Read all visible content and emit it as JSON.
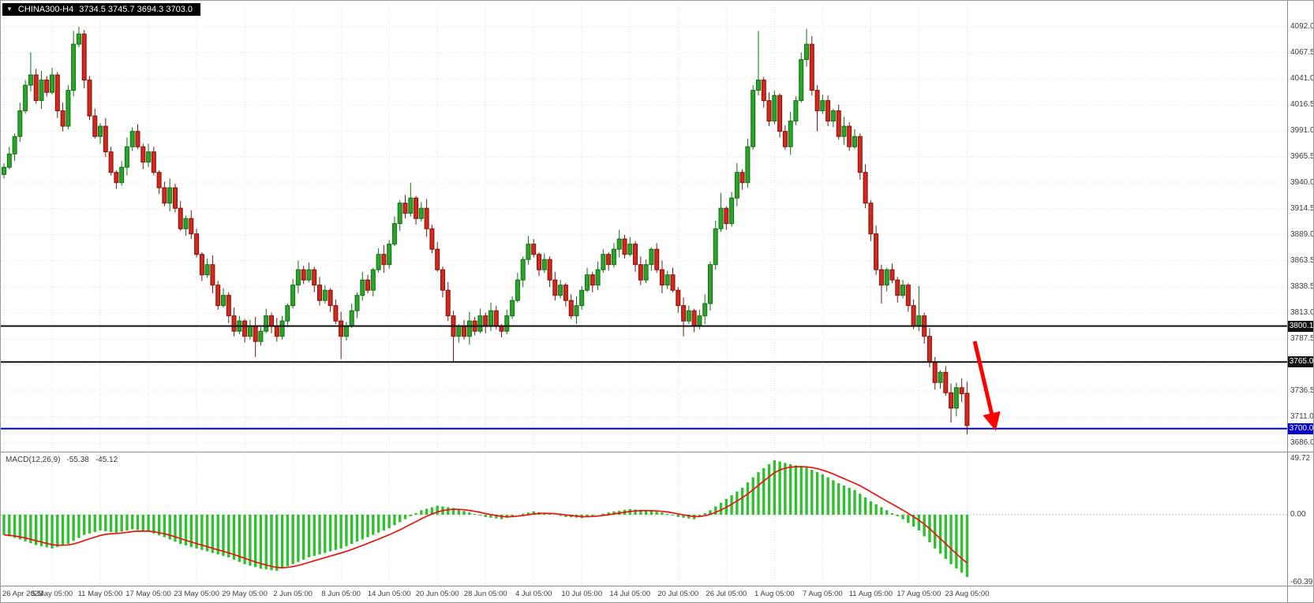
{
  "header": {
    "symbol": "CHINA300-H4",
    "ohlc": "3734.5 3745.7 3694.3 3703.0"
  },
  "price_axis": {
    "labels": [
      "4092.0",
      "4067.5",
      "4041.0",
      "4016.5",
      "3991.0",
      "3965.5",
      "3940.0",
      "3914.5",
      "3889.0",
      "3863.5",
      "3838.5",
      "3813.0",
      "3787.5",
      "3762.0",
      "3736.5",
      "3711.0",
      "3686.0"
    ]
  },
  "hlines": [
    {
      "label": "3800.1",
      "price": 3800.1,
      "color": "#111111"
    },
    {
      "label": "3765.0",
      "price": 3765.0,
      "color": "#111111"
    },
    {
      "label": "3700.0",
      "price": 3700.0,
      "color": "#0000cc"
    }
  ],
  "time_axis": {
    "labels": [
      "26 Apr 2023",
      "5 May 05:00",
      "11 May 05:00",
      "17 May 05:00",
      "23 May 05:00",
      "29 May 05:00",
      "2 Jun 05:00",
      "8 Jun 05:00",
      "14 Jun 05:00",
      "20 Jun 05:00",
      "28 Jun 05:00",
      "4 Jul 05:00",
      "10 Jul 05:00",
      "14 Jul 05:00",
      "20 Jul 05:00",
      "26 Jul 05:00",
      "1 Aug 05:00",
      "7 Aug 05:00",
      "11 Aug 05:00",
      "17 Aug 05:00",
      "23 Aug 05:00"
    ]
  },
  "indicator": {
    "name": "MACD(12,26,9)",
    "main": "-55.38",
    "signal": "-45.12",
    "scale": [
      "49.72",
      "0.00",
      "-60.39"
    ]
  },
  "colors": {
    "bull_fill": "#2aa52a",
    "bull_stroke": "#0f6e12",
    "bear_fill": "#d6271c",
    "bear_stroke": "#7e120b",
    "histogram": "#2fbf2f",
    "signal_line": "#e8150d",
    "arrow": "#ff0000",
    "blue_line": "#0000cc",
    "black_line": "#111111"
  },
  "chart_data": {
    "type": "candlestick+macd",
    "symbol": "CHINA300",
    "timeframe": "H4",
    "price_axis_top": 4092.0,
    "price_axis_bottom": 3686.0,
    "x_labels_every": 9,
    "candles": [
      [
        3948,
        3959,
        3944,
        3955
      ],
      [
        3955,
        3975,
        3953,
        3968
      ],
      [
        3968,
        3988,
        3961,
        3985
      ],
      [
        3985,
        4018,
        3980,
        4010
      ],
      [
        4010,
        4040,
        4007,
        4035
      ],
      [
        4035,
        4067,
        4029,
        4045
      ],
      [
        4045,
        4051,
        4017,
        4020
      ],
      [
        4020,
        4049,
        4012,
        4040
      ],
      [
        4040,
        4044,
        4024,
        4028
      ],
      [
        4028,
        4052,
        4026,
        4045
      ],
      [
        4045,
        4048,
        4003,
        4010
      ],
      [
        4010,
        4018,
        3990,
        3995
      ],
      [
        3995,
        4035,
        3992,
        4030
      ],
      [
        4030,
        4088,
        4024,
        4075
      ],
      [
        4075,
        4092,
        4072,
        4085
      ],
      [
        4085,
        4089,
        4032,
        4040
      ],
      [
        4040,
        4044,
        4001,
        4005
      ],
      [
        4005,
        4012,
        3983,
        3985
      ],
      [
        3985,
        3998,
        3978,
        3995
      ],
      [
        3995,
        4003,
        3965,
        3970
      ],
      [
        3970,
        3975,
        3947,
        3950
      ],
      [
        3950,
        3952,
        3934,
        3940
      ],
      [
        3940,
        3961,
        3937,
        3955
      ],
      [
        3955,
        3984,
        3947,
        3975
      ],
      [
        3975,
        3994,
        3971,
        3990
      ],
      [
        3990,
        3997,
        3973,
        3975
      ],
      [
        3975,
        3978,
        3953,
        3960
      ],
      [
        3960,
        3978,
        3955,
        3970
      ],
      [
        3970,
        3975,
        3947,
        3950
      ],
      [
        3950,
        3952,
        3929,
        3935
      ],
      [
        3935,
        3941,
        3917,
        3920
      ],
      [
        3920,
        3944,
        3912,
        3935
      ],
      [
        3935,
        3939,
        3911,
        3915
      ],
      [
        3915,
        3922,
        3893,
        3895
      ],
      [
        3895,
        3908,
        3888,
        3905
      ],
      [
        3905,
        3913,
        3885,
        3890
      ],
      [
        3890,
        3895,
        3867,
        3870
      ],
      [
        3870,
        3872,
        3844,
        3850
      ],
      [
        3850,
        3866,
        3847,
        3860
      ],
      [
        3860,
        3869,
        3832,
        3840
      ],
      [
        3840,
        3844,
        3816,
        3820
      ],
      [
        3820,
        3837,
        3818,
        3830
      ],
      [
        3830,
        3833,
        3803,
        3810
      ],
      [
        3810,
        3818,
        3790,
        3795
      ],
      [
        3795,
        3810,
        3792,
        3805
      ],
      [
        3805,
        3807,
        3784,
        3790
      ],
      [
        3790,
        3806,
        3787,
        3800
      ],
      [
        3800,
        3809,
        3770,
        3785
      ],
      [
        3785,
        3799,
        3781,
        3795
      ],
      [
        3795,
        3817,
        3793,
        3810
      ],
      [
        3810,
        3813,
        3793,
        3800
      ],
      [
        3800,
        3808,
        3785,
        3790
      ],
      [
        3790,
        3810,
        3787,
        3805
      ],
      [
        3805,
        3822,
        3799,
        3820
      ],
      [
        3820,
        3846,
        3817,
        3840
      ],
      [
        3840,
        3864,
        3832,
        3855
      ],
      [
        3855,
        3859,
        3841,
        3845
      ],
      [
        3845,
        3862,
        3843,
        3855
      ],
      [
        3855,
        3858,
        3833,
        3840
      ],
      [
        3840,
        3848,
        3820,
        3825
      ],
      [
        3825,
        3840,
        3822,
        3835
      ],
      [
        3835,
        3837,
        3814,
        3820
      ],
      [
        3820,
        3826,
        3802,
        3805
      ],
      [
        3805,
        3814,
        3768,
        3790
      ],
      [
        3790,
        3804,
        3786,
        3800
      ],
      [
        3800,
        3822,
        3798,
        3815
      ],
      [
        3815,
        3833,
        3808,
        3830
      ],
      [
        3830,
        3853,
        3825,
        3845
      ],
      [
        3845,
        3850,
        3832,
        3835
      ],
      [
        3835,
        3857,
        3829,
        3855
      ],
      [
        3855,
        3876,
        3852,
        3870
      ],
      [
        3870,
        3879,
        3852,
        3860
      ],
      [
        3860,
        3884,
        3856,
        3880
      ],
      [
        3880,
        3907,
        3878,
        3900
      ],
      [
        3900,
        3923,
        3893,
        3920
      ],
      [
        3920,
        3928,
        3905,
        3910
      ],
      [
        3910,
        3940,
        3907,
        3925
      ],
      [
        3925,
        3927,
        3899,
        3905
      ],
      [
        3905,
        3921,
        3902,
        3915
      ],
      [
        3915,
        3924,
        3887,
        3895
      ],
      [
        3895,
        3899,
        3871,
        3875
      ],
      [
        3875,
        3882,
        3853,
        3855
      ],
      [
        3855,
        3858,
        3828,
        3835
      ],
      [
        3835,
        3843,
        3805,
        3810
      ],
      [
        3810,
        3815,
        3765,
        3790
      ],
      [
        3790,
        3802,
        3784,
        3800
      ],
      [
        3800,
        3806,
        3787,
        3790
      ],
      [
        3790,
        3814,
        3782,
        3805
      ],
      [
        3805,
        3809,
        3791,
        3795
      ],
      [
        3795,
        3817,
        3793,
        3810
      ],
      [
        3810,
        3813,
        3793,
        3800
      ],
      [
        3800,
        3823,
        3795,
        3815
      ],
      [
        3815,
        3820,
        3797,
        3800
      ],
      [
        3800,
        3802,
        3789,
        3795
      ],
      [
        3795,
        3816,
        3792,
        3810
      ],
      [
        3810,
        3829,
        3807,
        3825
      ],
      [
        3825,
        3852,
        3823,
        3845
      ],
      [
        3845,
        3868,
        3838,
        3865
      ],
      [
        3865,
        3888,
        3860,
        3880
      ],
      [
        3880,
        3885,
        3867,
        3870
      ],
      [
        3870,
        3872,
        3849,
        3855
      ],
      [
        3855,
        3871,
        3852,
        3865
      ],
      [
        3865,
        3868,
        3838,
        3845
      ],
      [
        3845,
        3853,
        3825,
        3830
      ],
      [
        3830,
        3845,
        3827,
        3840
      ],
      [
        3840,
        3842,
        3819,
        3825
      ],
      [
        3825,
        3831,
        3807,
        3810
      ],
      [
        3810,
        3829,
        3802,
        3820
      ],
      [
        3820,
        3839,
        3816,
        3835
      ],
      [
        3835,
        3857,
        3833,
        3850
      ],
      [
        3850,
        3853,
        3833,
        3840
      ],
      [
        3840,
        3863,
        3835,
        3855
      ],
      [
        3855,
        3875,
        3852,
        3870
      ],
      [
        3870,
        3872,
        3854,
        3860
      ],
      [
        3860,
        3881,
        3857,
        3875
      ],
      [
        3875,
        3894,
        3867,
        3885
      ],
      [
        3885,
        3889,
        3866,
        3870
      ],
      [
        3870,
        3887,
        3868,
        3880
      ],
      [
        3880,
        3883,
        3853,
        3860
      ],
      [
        3860,
        3868,
        3840,
        3845
      ],
      [
        3845,
        3865,
        3842,
        3860
      ],
      [
        3860,
        3877,
        3854,
        3875
      ],
      [
        3875,
        3881,
        3852,
        3855
      ],
      [
        3855,
        3864,
        3832,
        3840
      ],
      [
        3840,
        3854,
        3836,
        3850
      ],
      [
        3850,
        3857,
        3833,
        3835
      ],
      [
        3835,
        3838,
        3813,
        3820
      ],
      [
        3820,
        3828,
        3790,
        3805
      ],
      [
        3805,
        3820,
        3802,
        3815
      ],
      [
        3815,
        3817,
        3794,
        3800
      ],
      [
        3800,
        3816,
        3797,
        3810
      ],
      [
        3810,
        3831,
        3802,
        3822
      ],
      [
        3822,
        3863,
        3815,
        3860
      ],
      [
        3860,
        3903,
        3855,
        3895
      ],
      [
        3895,
        3930,
        3892,
        3915
      ],
      [
        3915,
        3917,
        3894,
        3900
      ],
      [
        3900,
        3931,
        3897,
        3925
      ],
      [
        3925,
        3959,
        3917,
        3950
      ],
      [
        3950,
        3953,
        3933,
        3940
      ],
      [
        3940,
        3983,
        3935,
        3975
      ],
      [
        3975,
        4035,
        3972,
        4030
      ],
      [
        4030,
        4088,
        4025,
        4040
      ],
      [
        4040,
        4043,
        4013,
        4020
      ],
      [
        4020,
        4028,
        3995,
        4000
      ],
      [
        4000,
        4030,
        3997,
        4025
      ],
      [
        4025,
        4027,
        3984,
        3990
      ],
      [
        3990,
        3996,
        3972,
        3975
      ],
      [
        3975,
        4009,
        3967,
        4000
      ],
      [
        4000,
        4024,
        3996,
        4020
      ],
      [
        4020,
        4067,
        4018,
        4060
      ],
      [
        4060,
        4090,
        4053,
        4075
      ],
      [
        4075,
        4083,
        4025,
        4030
      ],
      [
        4030,
        4035,
        3990,
        4010
      ],
      [
        4010,
        4026,
        4007,
        4020
      ],
      [
        4020,
        4025,
        3995,
        4000
      ],
      [
        4000,
        4012,
        3994,
        4010
      ],
      [
        4010,
        4016,
        3982,
        3985
      ],
      [
        3985,
        4004,
        3977,
        3995
      ],
      [
        3995,
        3999,
        3971,
        3975
      ],
      [
        3975,
        3992,
        3973,
        3985
      ],
      [
        3985,
        3988,
        3943,
        3950
      ],
      [
        3950,
        3958,
        3915,
        3920
      ],
      [
        3920,
        3923,
        3883,
        3890
      ],
      [
        3890,
        3898,
        3850,
        3855
      ],
      [
        3855,
        3860,
        3822,
        3840
      ],
      [
        3840,
        3857,
        3834,
        3855
      ],
      [
        3855,
        3861,
        3842,
        3845
      ],
      [
        3845,
        3848,
        3823,
        3830
      ],
      [
        3830,
        3845,
        3827,
        3840
      ],
      [
        3840,
        3842,
        3814,
        3820
      ],
      [
        3820,
        3826,
        3797,
        3800
      ],
      [
        3800,
        3839,
        3795,
        3810
      ],
      [
        3810,
        3813,
        3783,
        3790
      ],
      [
        3790,
        3798,
        3760,
        3765
      ],
      [
        3765,
        3770,
        3738,
        3745
      ],
      [
        3745,
        3757,
        3739,
        3755
      ],
      [
        3755,
        3761,
        3732,
        3735
      ],
      [
        3735,
        3744,
        3706,
        3720
      ],
      [
        3720,
        3745,
        3712,
        3740
      ],
      [
        3740,
        3749,
        3726,
        3734
      ],
      [
        3734.5,
        3745.7,
        3694.3,
        3703.0
      ]
    ],
    "macd": {
      "fast": 12,
      "slow": 26,
      "signal_period": 9,
      "last_main": -55.38,
      "last_signal": -45.12,
      "scale_max": 49.72,
      "scale_min": -60.39,
      "histogram_waypoints": [
        [
          0,
          -18
        ],
        [
          3,
          -22
        ],
        [
          6,
          -27
        ],
        [
          9,
          -30
        ],
        [
          12,
          -26
        ],
        [
          15,
          -18
        ],
        [
          18,
          -14
        ],
        [
          21,
          -16
        ],
        [
          24,
          -13
        ],
        [
          27,
          -15
        ],
        [
          30,
          -20
        ],
        [
          33,
          -26
        ],
        [
          36,
          -30
        ],
        [
          39,
          -34
        ],
        [
          42,
          -38
        ],
        [
          45,
          -44
        ],
        [
          48,
          -48
        ],
        [
          51,
          -50
        ],
        [
          54,
          -44
        ],
        [
          57,
          -38
        ],
        [
          60,
          -34
        ],
        [
          63,
          -30
        ],
        [
          66,
          -24
        ],
        [
          69,
          -18
        ],
        [
          72,
          -12
        ],
        [
          75,
          -4
        ],
        [
          78,
          4
        ],
        [
          81,
          8
        ],
        [
          84,
          6
        ],
        [
          87,
          2
        ],
        [
          90,
          -2
        ],
        [
          93,
          -4
        ],
        [
          96,
          0
        ],
        [
          99,
          3
        ],
        [
          102,
          1
        ],
        [
          105,
          -2
        ],
        [
          108,
          -3
        ],
        [
          111,
          0
        ],
        [
          114,
          3
        ],
        [
          117,
          5
        ],
        [
          120,
          4
        ],
        [
          123,
          2
        ],
        [
          126,
          -2
        ],
        [
          129,
          -4
        ],
        [
          132,
          4
        ],
        [
          135,
          14
        ],
        [
          138,
          24
        ],
        [
          141,
          38
        ],
        [
          144,
          48.5
        ],
        [
          147,
          45
        ],
        [
          150,
          42
        ],
        [
          153,
          36
        ],
        [
          156,
          28
        ],
        [
          159,
          22
        ],
        [
          162,
          12
        ],
        [
          165,
          4
        ],
        [
          168,
          -4
        ],
        [
          171,
          -14
        ],
        [
          174,
          -30
        ],
        [
          177,
          -44
        ],
        [
          180,
          -55.38
        ]
      ]
    }
  }
}
